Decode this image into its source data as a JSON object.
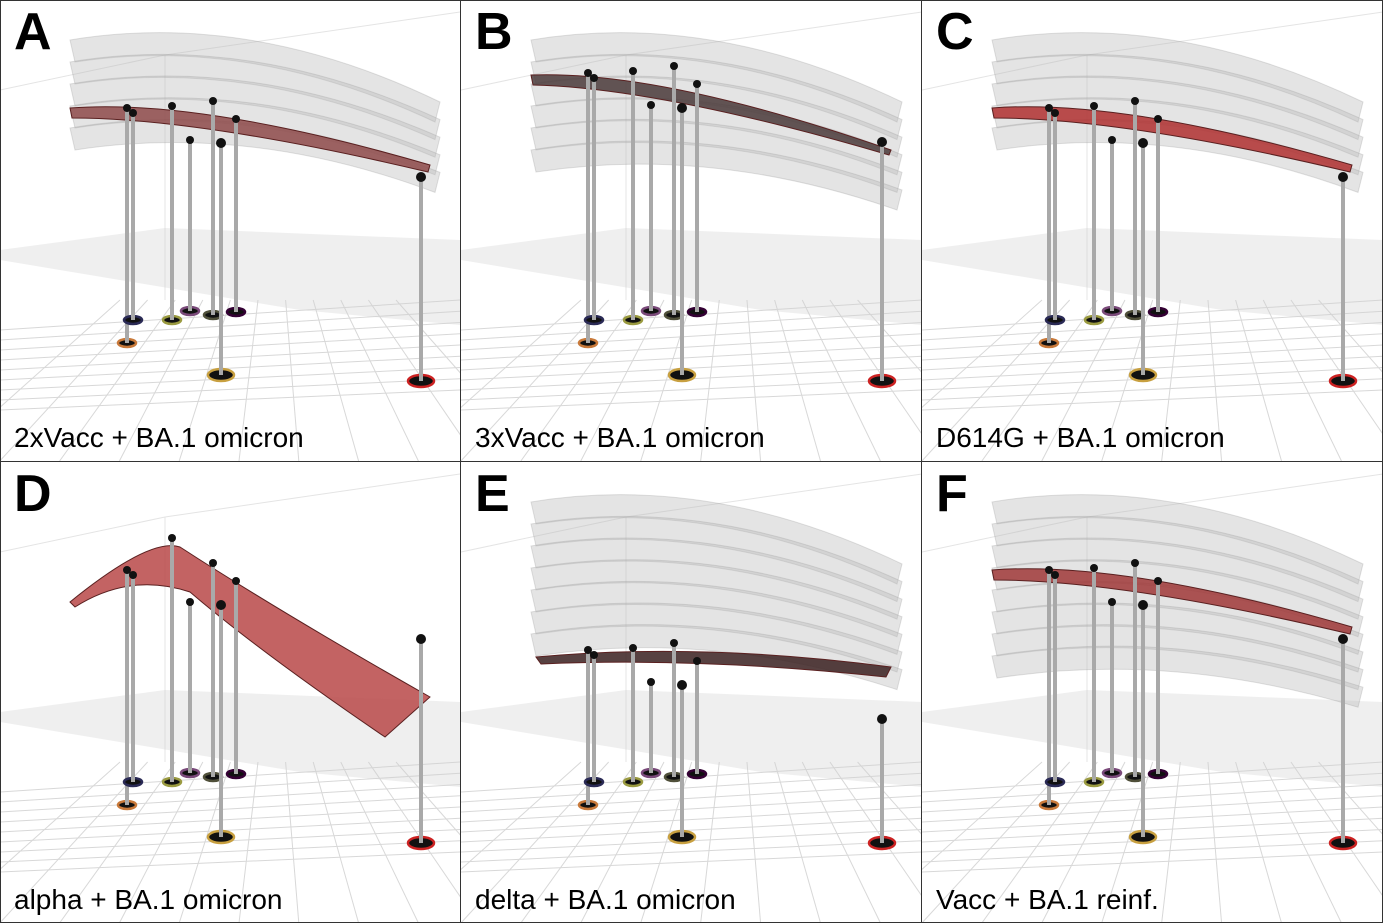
{
  "panels": [
    {
      "letter": "A",
      "caption": "2xVacc + BA.1 omicron",
      "variant": "flat",
      "shadow_layers": 5,
      "sheet_color": "#8e4a4a"
    },
    {
      "letter": "B",
      "caption": "3xVacc + BA.1 omicron",
      "variant": "flat-high",
      "shadow_layers": 6,
      "sheet_color": "#4a3a3a"
    },
    {
      "letter": "C",
      "caption": "D614G + BA.1 omicron",
      "variant": "flat-red",
      "shadow_layers": 5,
      "sheet_color": "#b03030"
    },
    {
      "letter": "D",
      "caption": "alpha + BA.1 omicron",
      "variant": "peak",
      "shadow_layers": 0,
      "sheet_color": "#b84848"
    },
    {
      "letter": "E",
      "caption": "delta + BA.1 omicron",
      "variant": "dark",
      "shadow_layers": 7,
      "sheet_color": "#3a2020"
    },
    {
      "letter": "F",
      "caption": "Vacc + BA.1 reinf.",
      "variant": "flat-red",
      "shadow_layers": 8,
      "sheet_color": "#a03838"
    }
  ],
  "colors": {
    "pole": "#a9a9a9",
    "ball": "#111111",
    "ground_grid": "#d8d8d8",
    "shadow_sheet": "#b8b8b8",
    "base_rings": [
      "#c8793a",
      "#2a2a55",
      "#9a9a40",
      "#7a4a7a",
      "#50503a",
      "#c8a040",
      "#330033",
      "#cc2222"
    ]
  }
}
